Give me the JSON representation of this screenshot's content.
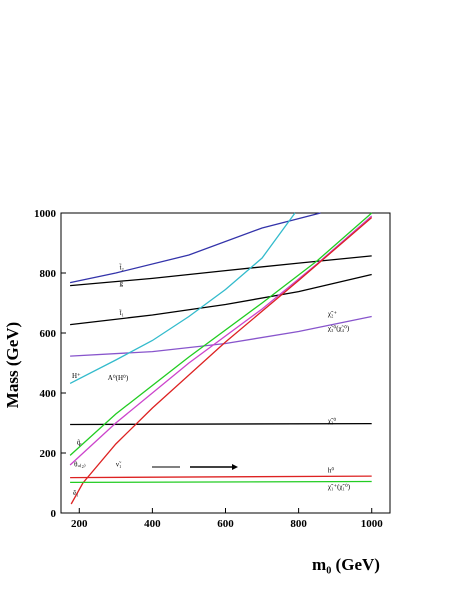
{
  "chart_data": {
    "type": "line",
    "title": "",
    "xlabel": "m₀ (GeV)",
    "ylabel": "Mass (GeV)",
    "xlim": [
      150,
      1050
    ],
    "ylim": [
      0,
      1000
    ],
    "x_ticks": [
      200,
      400,
      600,
      800,
      1000
    ],
    "y_ticks": [
      0,
      200,
      400,
      600,
      800,
      1000
    ],
    "grid": false,
    "series": [
      {
        "id": "s-t2",
        "color": "#3333aa",
        "x": [
          175,
          300,
          500,
          700,
          860
        ],
        "y": [
          768,
          800,
          860,
          950,
          1000
        ]
      },
      {
        "id": "s-g",
        "color": "#000000",
        "x": [
          175,
          400,
          600,
          800,
          1000
        ],
        "y": [
          758,
          782,
          808,
          833,
          857
        ]
      },
      {
        "id": "s-t1",
        "color": "#000000",
        "x": [
          175,
          400,
          600,
          800,
          1000
        ],
        "y": [
          628,
          660,
          695,
          738,
          795
        ]
      },
      {
        "id": "s-c2",
        "color": "#8855cc",
        "x": [
          175,
          400,
          600,
          800,
          1000
        ],
        "y": [
          523,
          538,
          565,
          605,
          655
        ]
      },
      {
        "id": "s-H",
        "color": "#33bbcc",
        "x": [
          175,
          300,
          400,
          500,
          600,
          700,
          790
        ],
        "y": [
          432,
          510,
          575,
          655,
          745,
          850,
          1000
        ]
      },
      {
        "id": "s-neut",
        "color": "#000000",
        "x": [
          175,
          1000
        ],
        "y": [
          295,
          298
        ]
      },
      {
        "id": "s-q",
        "color": "#22cc22",
        "x": [
          175,
          300,
          500,
          700,
          850,
          1000
        ],
        "y": [
          192,
          330,
          520,
          700,
          840,
          1000
        ]
      },
      {
        "id": "s-nu",
        "color": "#cc44cc",
        "x": [
          175,
          300,
          500,
          700,
          850,
          1000
        ],
        "y": [
          160,
          300,
          500,
          680,
          830,
          990
        ]
      },
      {
        "id": "s-e",
        "color": "#dd2222",
        "x": [
          178,
          210,
          300,
          400,
          600,
          800,
          1000
        ],
        "y": [
          30,
          100,
          230,
          350,
          570,
          775,
          985
        ]
      },
      {
        "id": "s-h",
        "color": "#dd2222",
        "x": [
          175,
          1000
        ],
        "y": [
          118,
          123
        ]
      },
      {
        "id": "s-chi1",
        "color": "#22cc22",
        "x": [
          175,
          1000
        ],
        "y": [
          102,
          105
        ]
      }
    ],
    "annotations": [
      {
        "key": "t2",
        "text": "t̃₂",
        "x": 310,
        "y": 812
      },
      {
        "key": "g",
        "text": "g̃",
        "x": 310,
        "y": 758
      },
      {
        "key": "t1",
        "text": "t̃₁",
        "x": 310,
        "y": 660
      },
      {
        "key": "c2pm",
        "text": "χ̃₂⁺",
        "x": 880,
        "y": 656
      },
      {
        "key": "c34",
        "text": "χ̃₃⁰(χ̃₄⁰)",
        "x": 880,
        "y": 608
      },
      {
        "key": "H",
        "text": "H⁺",
        "x": 180,
        "y": 450
      },
      {
        "key": "A",
        "text": "A⁰(H⁰)",
        "x": 278,
        "y": 443
      },
      {
        "key": "c20",
        "text": "χ̃₂⁰",
        "x": 880,
        "y": 300
      },
      {
        "key": "q",
        "text": "q̃ᵣ",
        "x": 193,
        "y": 228
      },
      {
        "key": "theta",
        "text": "θᵤ₍₂₎",
        "x": 186,
        "y": 155
      },
      {
        "key": "nu",
        "text": "ν̃₁",
        "x": 300,
        "y": 155
      },
      {
        "key": "h0",
        "text": "h⁰",
        "x": 880,
        "y": 135
      },
      {
        "key": "c1",
        "text": "χ̃₁⁺(χ̃₁⁰)",
        "x": 880,
        "y": 80
      },
      {
        "key": "e1",
        "text": "ẽ₁",
        "x": 183,
        "y": 60
      }
    ]
  }
}
